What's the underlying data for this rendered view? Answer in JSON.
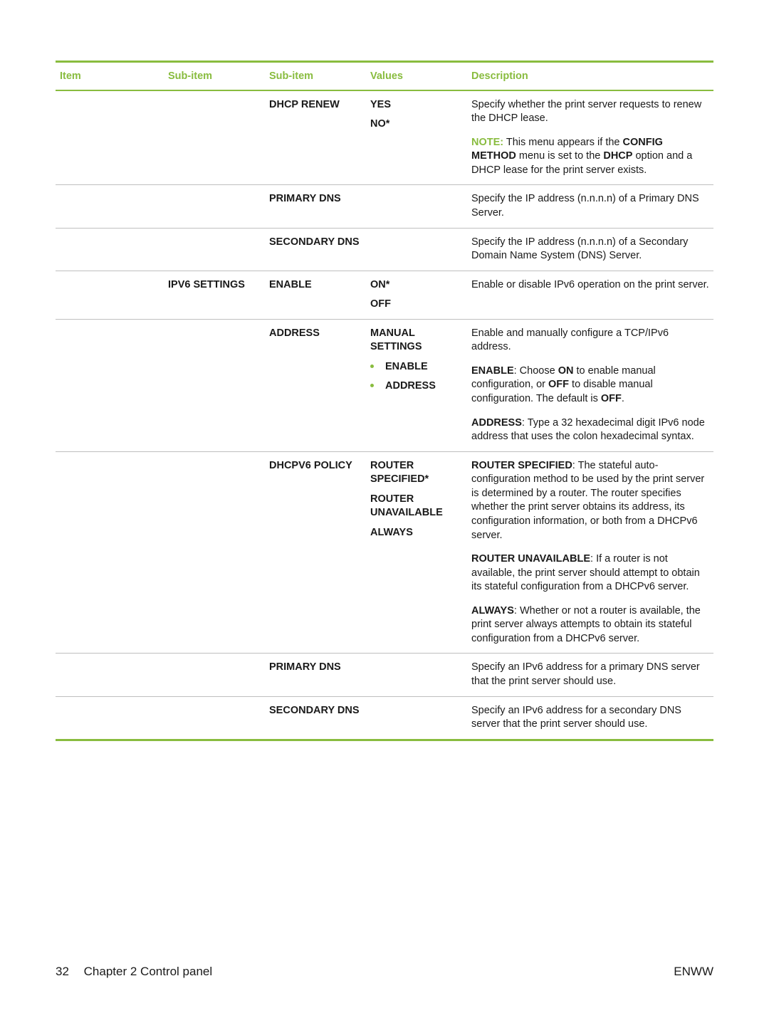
{
  "colors": {
    "accent": "#89bc3f",
    "rule": "#bfbfbf",
    "text": "#1a1a1a",
    "background": "#ffffff"
  },
  "headers": {
    "item": "Item",
    "sub1": "Sub-item",
    "sub2": "Sub-item",
    "values": "Values",
    "desc": "Description"
  },
  "rows": {
    "dhcp_renew": {
      "sub2": "DHCP RENEW",
      "val1": "YES",
      "val2": "NO*",
      "desc_p1": "Specify whether the print server requests to renew the DHCP lease.",
      "note_label": "NOTE:",
      "note_t1": "This menu appears if the ",
      "note_b1": "CONFIG METHOD",
      "note_t2": " menu is set to the ",
      "note_b2": "DHCP",
      "note_t3": " option and a DHCP lease for the print server exists."
    },
    "primary_dns": {
      "sub2": "PRIMARY DNS",
      "desc": "Specify the IP address (n.n.n.n) of a Primary DNS Server."
    },
    "secondary_dns": {
      "sub2": "SECONDARY DNS",
      "desc": "Specify the IP address (n.n.n.n) of a Secondary Domain Name System (DNS) Server."
    },
    "ipv6_enable": {
      "sub1": "IPV6 SETTINGS",
      "sub2": "ENABLE",
      "val1": "ON*",
      "val2": "OFF",
      "desc": "Enable or disable IPv6 operation on the print server."
    },
    "address": {
      "sub2": "ADDRESS",
      "val_header": "MANUAL SETTINGS",
      "bullet1": "ENABLE",
      "bullet2": "ADDRESS",
      "desc_p1": "Enable and manually configure a TCP/IPv6 address.",
      "p2_b": "ENABLE",
      "p2_t1": ": Choose ",
      "p2_b2": "ON",
      "p2_t2": " to enable manual configuration, or ",
      "p2_b3": "OFF",
      "p2_t3": " to disable manual configuration. The default is ",
      "p2_b4": "OFF",
      "p2_t4": ".",
      "p3_b": "ADDRESS",
      "p3_t": ": Type a 32 hexadecimal digit IPv6 node address that uses the colon hexadecimal syntax."
    },
    "dhcpv6": {
      "sub2": "DHCPV6 POLICY",
      "val1": "ROUTER SPECIFIED*",
      "val2": "ROUTER UNAVAILABLE",
      "val3": "ALWAYS",
      "p1_b": "ROUTER SPECIFIED",
      "p1_t": ": The stateful auto-configuration method to be used by the print server is determined by a router. The router specifies whether the print server obtains its address, its configuration information, or both from a DHCPv6 server.",
      "p2_b": "ROUTER UNAVAILABLE",
      "p2_t": ": If a router is not available, the print server should attempt to obtain its stateful configuration from a DHCPv6 server.",
      "p3_b": "ALWAYS",
      "p3_t": ": Whether or not a router is available, the print server always attempts to obtain its stateful configuration from a DHCPv6 server."
    },
    "ipv6_primary_dns": {
      "sub2": "PRIMARY DNS",
      "desc": "Specify an IPv6 address for a primary DNS server that the print server should use."
    },
    "ipv6_secondary_dns": {
      "sub2": "SECONDARY DNS",
      "desc": "Specify an IPv6 address for a secondary DNS server that the print server should use."
    }
  },
  "footer": {
    "page_number": "32",
    "chapter": "Chapter 2   Control panel",
    "right": "ENWW"
  }
}
